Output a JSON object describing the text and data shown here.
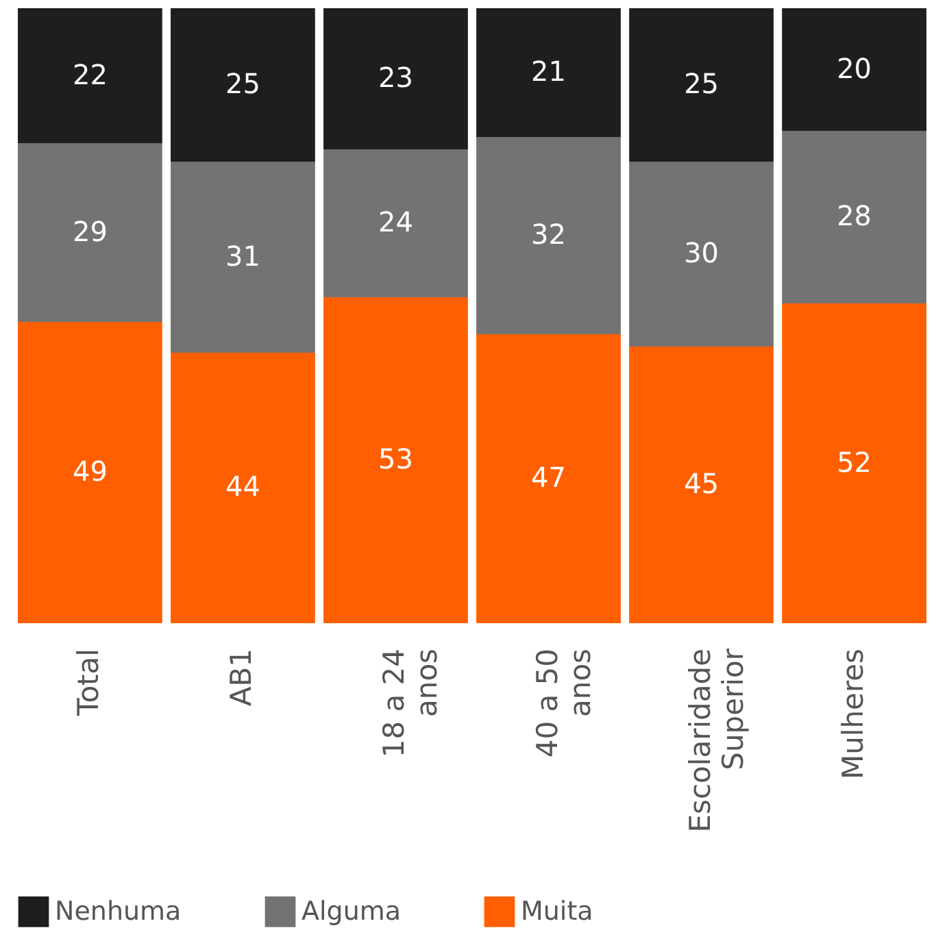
{
  "chart_data": {
    "type": "bar",
    "stacked": true,
    "data_labels": true,
    "grid": false,
    "legend": "bottom left",
    "categories": [
      "Total",
      "AB1",
      "18 a 24 anos",
      "40 a 50 anos",
      "Escolaridade Superior",
      "Mulheres"
    ],
    "series": [
      {
        "name": "Muita",
        "color": "#ff5f00",
        "values": [
          49,
          44,
          53,
          47,
          45,
          52
        ]
      },
      {
        "name": "Alguma",
        "color": "#737373",
        "values": [
          29,
          31,
          24,
          32,
          30,
          28
        ]
      },
      {
        "name": "Nenhuma",
        "color": "#1e1e1e",
        "values": [
          22,
          25,
          23,
          21,
          25,
          20
        ]
      }
    ]
  }
}
